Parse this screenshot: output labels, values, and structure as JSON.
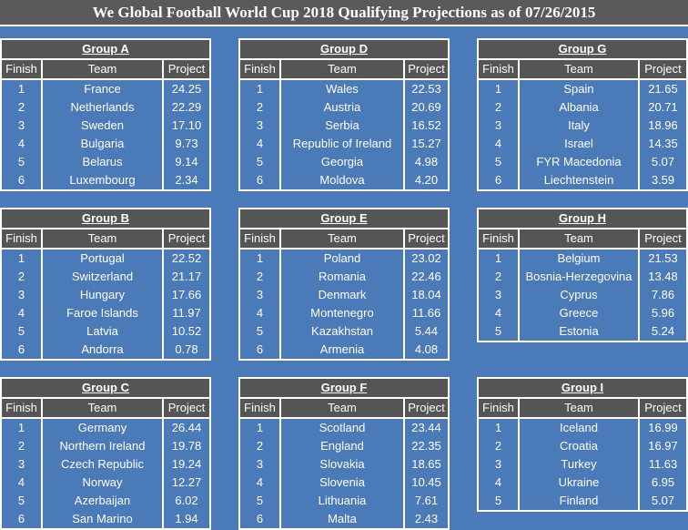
{
  "title": "We Global Football World Cup 2018 Qualifying Projections as of 07/26/2015",
  "columns": {
    "finish": "Finish",
    "team": "Team",
    "project": "Project"
  },
  "groups": [
    {
      "name": "Group A",
      "rows": [
        [
          "1",
          "France",
          "24.25"
        ],
        [
          "2",
          "Netherlands",
          "22.29"
        ],
        [
          "3",
          "Sweden",
          "17.10"
        ],
        [
          "4",
          "Bulgaria",
          "9.73"
        ],
        [
          "5",
          "Belarus",
          "9.14"
        ],
        [
          "6",
          "Luxembourg",
          "2.34"
        ]
      ]
    },
    {
      "name": "Group D",
      "rows": [
        [
          "1",
          "Wales",
          "22.53"
        ],
        [
          "2",
          "Austria",
          "20.69"
        ],
        [
          "3",
          "Serbia",
          "16.52"
        ],
        [
          "4",
          "Republic of Ireland",
          "15.27"
        ],
        [
          "5",
          "Georgia",
          "4.98"
        ],
        [
          "6",
          "Moldova",
          "4.20"
        ]
      ]
    },
    {
      "name": "Group G",
      "rows": [
        [
          "1",
          "Spain",
          "21.65"
        ],
        [
          "2",
          "Albania",
          "20.71"
        ],
        [
          "3",
          "Italy",
          "18.96"
        ],
        [
          "4",
          "Israel",
          "14.35"
        ],
        [
          "5",
          "FYR Macedonia",
          "5.07"
        ],
        [
          "6",
          "Liechtenstein",
          "3.59"
        ]
      ]
    },
    {
      "name": "Group B",
      "rows": [
        [
          "1",
          "Portugal",
          "22.52"
        ],
        [
          "2",
          "Switzerland",
          "21.17"
        ],
        [
          "3",
          "Hungary",
          "17.66"
        ],
        [
          "4",
          "Faroe Islands",
          "11.97"
        ],
        [
          "5",
          "Latvia",
          "10.52"
        ],
        [
          "6",
          "Andorra",
          "0.78"
        ]
      ]
    },
    {
      "name": "Group E",
      "rows": [
        [
          "1",
          "Poland",
          "23.02"
        ],
        [
          "2",
          "Romania",
          "22.46"
        ],
        [
          "3",
          "Denmark",
          "18.04"
        ],
        [
          "4",
          "Montenegro",
          "11.66"
        ],
        [
          "5",
          "Kazakhstan",
          "5.44"
        ],
        [
          "6",
          "Armenia",
          "4.08"
        ]
      ]
    },
    {
      "name": "Group H",
      "rows": [
        [
          "1",
          "Belgium",
          "21.53"
        ],
        [
          "2",
          "Bosnia-Herzegovina",
          "13.48"
        ],
        [
          "3",
          "Cyprus",
          "7.86"
        ],
        [
          "4",
          "Greece",
          "5.96"
        ],
        [
          "5",
          "Estonia",
          "5.24"
        ]
      ]
    },
    {
      "name": "Group C",
      "rows": [
        [
          "1",
          "Germany",
          "26.44"
        ],
        [
          "2",
          "Northern Ireland",
          "19.78"
        ],
        [
          "3",
          "Czech Republic",
          "19.24"
        ],
        [
          "4",
          "Norway",
          "12.27"
        ],
        [
          "5",
          "Azerbaijan",
          "6.02"
        ],
        [
          "6",
          "San Marino",
          "1.94"
        ]
      ]
    },
    {
      "name": "Group F",
      "rows": [
        [
          "1",
          "Scotland",
          "23.44"
        ],
        [
          "2",
          "England",
          "22.35"
        ],
        [
          "3",
          "Slovakia",
          "18.65"
        ],
        [
          "4",
          "Slovenia",
          "10.45"
        ],
        [
          "5",
          "Lithuania",
          "7.61"
        ],
        [
          "6",
          "Malta",
          "2.43"
        ]
      ]
    },
    {
      "name": "Group I",
      "rows": [
        [
          "1",
          "Iceland",
          "16.99"
        ],
        [
          "2",
          "Croatia",
          "16.97"
        ],
        [
          "3",
          "Turkey",
          "11.63"
        ],
        [
          "4",
          "Ukraine",
          "6.95"
        ],
        [
          "5",
          "Finland",
          "5.07"
        ]
      ]
    }
  ]
}
